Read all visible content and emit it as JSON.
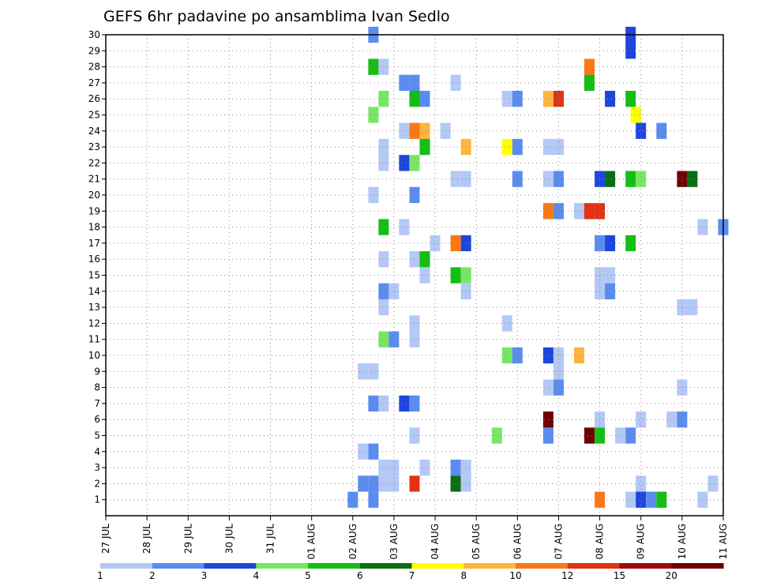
{
  "chart_data": {
    "type": "heatmap",
    "title": "GEFS 6hr padavine po ansamblima Ivan Sedlo",
    "y_ticks": [
      "1",
      "2",
      "3",
      "4",
      "5",
      "6",
      "7",
      "8",
      "9",
      "10",
      "11",
      "12",
      "13",
      "14",
      "15",
      "16",
      "17",
      "18",
      "19",
      "20",
      "21",
      "22",
      "23",
      "24",
      "25",
      "26",
      "27",
      "28",
      "29",
      "30"
    ],
    "x_ticks": [
      "27 JUL",
      "28 JUL",
      "29 JUL",
      "30 JUL",
      "31 JUL",
      "01 AUG",
      "02 AUG",
      "03 AUG",
      "04 AUG",
      "05 AUG",
      "06 AUG",
      "07 AUG",
      "08 AUG",
      "09 AUG",
      "10 AUG",
      "11 AUG"
    ],
    "x_range_days": [
      0,
      15
    ],
    "y_range": [
      0,
      30
    ],
    "grid": true,
    "colorbar": {
      "labels": [
        "1",
        "2",
        "3",
        "4",
        "5",
        "6",
        "7",
        "8",
        "10",
        "12",
        "15",
        "20"
      ],
      "colors": [
        "#b4c8f5",
        "#5a8cf0",
        "#1e46dc",
        "#78e664",
        "#14be14",
        "#0a6e14",
        "#ffff00",
        "#ffb43c",
        "#fa7814",
        "#e13214",
        "#a00a0a",
        "#6e0000"
      ]
    },
    "cells": [
      {
        "day": 6.5,
        "member": 30,
        "c": 1
      },
      {
        "day": 12.75,
        "member": 30,
        "c": 2
      },
      {
        "day": 12.75,
        "member": 29,
        "c": 2
      },
      {
        "day": 6.5,
        "member": 28,
        "c": 4
      },
      {
        "day": 6.75,
        "member": 28,
        "c": 0
      },
      {
        "day": 11.75,
        "member": 28,
        "c": 8
      },
      {
        "day": 7.25,
        "member": 27,
        "c": 1
      },
      {
        "day": 7.5,
        "member": 27,
        "c": 1
      },
      {
        "day": 8.5,
        "member": 27,
        "c": 0
      },
      {
        "day": 11.75,
        "member": 27,
        "c": 4
      },
      {
        "day": 6.75,
        "member": 26,
        "c": 3
      },
      {
        "day": 7.5,
        "member": 26,
        "c": 4
      },
      {
        "day": 7.75,
        "member": 26,
        "c": 1
      },
      {
        "day": 9.75,
        "member": 26,
        "c": 0
      },
      {
        "day": 10.0,
        "member": 26,
        "c": 1
      },
      {
        "day": 10.75,
        "member": 26,
        "c": 7
      },
      {
        "day": 11.0,
        "member": 26,
        "c": 9
      },
      {
        "day": 12.25,
        "member": 26,
        "c": 2
      },
      {
        "day": 12.75,
        "member": 26,
        "c": 4
      },
      {
        "day": 6.5,
        "member": 25,
        "c": 3
      },
      {
        "day": 12.875,
        "member": 25,
        "c": 6
      },
      {
        "day": 7.25,
        "member": 24,
        "c": 0
      },
      {
        "day": 7.5,
        "member": 24,
        "c": 8
      },
      {
        "day": 7.75,
        "member": 24,
        "c": 7
      },
      {
        "day": 8.25,
        "member": 24,
        "c": 0
      },
      {
        "day": 13.0,
        "member": 24,
        "c": 2
      },
      {
        "day": 13.5,
        "member": 24,
        "c": 1
      },
      {
        "day": 6.75,
        "member": 23,
        "c": 0
      },
      {
        "day": 7.75,
        "member": 23,
        "c": 4
      },
      {
        "day": 8.75,
        "member": 23,
        "c": 7
      },
      {
        "day": 9.75,
        "member": 23,
        "c": 6
      },
      {
        "day": 10.0,
        "member": 23,
        "c": 1
      },
      {
        "day": 10.75,
        "member": 23,
        "c": 0
      },
      {
        "day": 11.0,
        "member": 23,
        "c": 0
      },
      {
        "day": 6.75,
        "member": 22,
        "c": 0
      },
      {
        "day": 7.25,
        "member": 22,
        "c": 2
      },
      {
        "day": 7.5,
        "member": 22,
        "c": 3
      },
      {
        "day": 8.5,
        "member": 21,
        "c": 0
      },
      {
        "day": 8.75,
        "member": 21,
        "c": 0
      },
      {
        "day": 10.0,
        "member": 21,
        "c": 1
      },
      {
        "day": 10.75,
        "member": 21,
        "c": 0
      },
      {
        "day": 11.0,
        "member": 21,
        "c": 1
      },
      {
        "day": 12.0,
        "member": 21,
        "c": 2
      },
      {
        "day": 12.25,
        "member": 21,
        "c": 5
      },
      {
        "day": 12.75,
        "member": 21,
        "c": 4
      },
      {
        "day": 13.0,
        "member": 21,
        "c": 3
      },
      {
        "day": 14.0,
        "member": 21,
        "c": 11
      },
      {
        "day": 14.25,
        "member": 21,
        "c": 5
      },
      {
        "day": 6.5,
        "member": 20,
        "c": 0
      },
      {
        "day": 7.5,
        "member": 20,
        "c": 1
      },
      {
        "day": 10.75,
        "member": 19,
        "c": 8
      },
      {
        "day": 11.0,
        "member": 19,
        "c": 1
      },
      {
        "day": 11.5,
        "member": 19,
        "c": 0
      },
      {
        "day": 11.75,
        "member": 19,
        "c": 9
      },
      {
        "day": 12.0,
        "member": 19,
        "c": 9
      },
      {
        "day": 6.75,
        "member": 18,
        "c": 4
      },
      {
        "day": 7.25,
        "member": 18,
        "c": 0
      },
      {
        "day": 14.5,
        "member": 18,
        "c": 0
      },
      {
        "day": 15.0,
        "member": 18,
        "c": 1
      },
      {
        "day": 8.0,
        "member": 17,
        "c": 0
      },
      {
        "day": 8.5,
        "member": 17,
        "c": 8
      },
      {
        "day": 8.75,
        "member": 17,
        "c": 2
      },
      {
        "day": 12.0,
        "member": 17,
        "c": 1
      },
      {
        "day": 12.25,
        "member": 17,
        "c": 2
      },
      {
        "day": 12.75,
        "member": 17,
        "c": 4
      },
      {
        "day": 6.75,
        "member": 16,
        "c": 0
      },
      {
        "day": 7.5,
        "member": 16,
        "c": 0
      },
      {
        "day": 7.75,
        "member": 16,
        "c": 4
      },
      {
        "day": 7.75,
        "member": 15,
        "c": 0
      },
      {
        "day": 8.5,
        "member": 15,
        "c": 4
      },
      {
        "day": 8.75,
        "member": 15,
        "c": 3
      },
      {
        "day": 12.0,
        "member": 15,
        "c": 0
      },
      {
        "day": 12.25,
        "member": 15,
        "c": 0
      },
      {
        "day": 6.75,
        "member": 14,
        "c": 1
      },
      {
        "day": 7.0,
        "member": 14,
        "c": 0
      },
      {
        "day": 8.75,
        "member": 14,
        "c": 0
      },
      {
        "day": 12.0,
        "member": 14,
        "c": 0
      },
      {
        "day": 12.25,
        "member": 14,
        "c": 1
      },
      {
        "day": 6.75,
        "member": 13,
        "c": 0
      },
      {
        "day": 14.0,
        "member": 13,
        "c": 0
      },
      {
        "day": 14.25,
        "member": 13,
        "c": 0
      },
      {
        "day": 7.5,
        "member": 12,
        "c": 0
      },
      {
        "day": 9.75,
        "member": 12,
        "c": 0
      },
      {
        "day": 6.75,
        "member": 11,
        "c": 3
      },
      {
        "day": 7.0,
        "member": 11,
        "c": 1
      },
      {
        "day": 7.5,
        "member": 11,
        "c": 0
      },
      {
        "day": 9.75,
        "member": 10,
        "c": 3
      },
      {
        "day": 10.0,
        "member": 10,
        "c": 1
      },
      {
        "day": 10.75,
        "member": 10,
        "c": 2
      },
      {
        "day": 11.0,
        "member": 10,
        "c": 0
      },
      {
        "day": 11.5,
        "member": 10,
        "c": 7
      },
      {
        "day": 6.25,
        "member": 9,
        "c": 0
      },
      {
        "day": 6.5,
        "member": 9,
        "c": 0
      },
      {
        "day": 11.0,
        "member": 9,
        "c": 0
      },
      {
        "day": 10.75,
        "member": 8,
        "c": 0
      },
      {
        "day": 11.0,
        "member": 8,
        "c": 1
      },
      {
        "day": 14.0,
        "member": 8,
        "c": 0
      },
      {
        "day": 6.5,
        "member": 7,
        "c": 1
      },
      {
        "day": 6.75,
        "member": 7,
        "c": 0
      },
      {
        "day": 7.25,
        "member": 7,
        "c": 2
      },
      {
        "day": 7.5,
        "member": 7,
        "c": 1
      },
      {
        "day": 10.75,
        "member": 6,
        "c": 11
      },
      {
        "day": 12.0,
        "member": 6,
        "c": 0
      },
      {
        "day": 13.0,
        "member": 6,
        "c": 0
      },
      {
        "day": 13.75,
        "member": 6,
        "c": 0
      },
      {
        "day": 14.0,
        "member": 6,
        "c": 1
      },
      {
        "day": 7.5,
        "member": 5,
        "c": 0
      },
      {
        "day": 9.5,
        "member": 5,
        "c": 3
      },
      {
        "day": 10.75,
        "member": 5,
        "c": 1
      },
      {
        "day": 11.75,
        "member": 5,
        "c": 11
      },
      {
        "day": 12.0,
        "member": 5,
        "c": 4
      },
      {
        "day": 12.5,
        "member": 5,
        "c": 0
      },
      {
        "day": 12.75,
        "member": 5,
        "c": 1
      },
      {
        "day": 6.25,
        "member": 4,
        "c": 0
      },
      {
        "day": 6.5,
        "member": 4,
        "c": 1
      },
      {
        "day": 6.75,
        "member": 3,
        "c": 0
      },
      {
        "day": 7.0,
        "member": 3,
        "c": 0
      },
      {
        "day": 7.75,
        "member": 3,
        "c": 0
      },
      {
        "day": 8.5,
        "member": 3,
        "c": 1
      },
      {
        "day": 8.75,
        "member": 3,
        "c": 0
      },
      {
        "day": 6.25,
        "member": 2,
        "c": 1
      },
      {
        "day": 6.5,
        "member": 2,
        "c": 1
      },
      {
        "day": 6.75,
        "member": 2,
        "c": 0
      },
      {
        "day": 7.0,
        "member": 2,
        "c": 0
      },
      {
        "day": 7.5,
        "member": 2,
        "c": 9
      },
      {
        "day": 8.5,
        "member": 2,
        "c": 5
      },
      {
        "day": 8.75,
        "member": 2,
        "c": 0
      },
      {
        "day": 13.0,
        "member": 2,
        "c": 0
      },
      {
        "day": 14.75,
        "member": 2,
        "c": 0
      },
      {
        "day": 6.0,
        "member": 1,
        "c": 1
      },
      {
        "day": 6.5,
        "member": 1,
        "c": 1
      },
      {
        "day": 12.0,
        "member": 1,
        "c": 8
      },
      {
        "day": 12.75,
        "member": 1,
        "c": 0
      },
      {
        "day": 13.0,
        "member": 1,
        "c": 2
      },
      {
        "day": 13.25,
        "member": 1,
        "c": 1
      },
      {
        "day": 13.5,
        "member": 1,
        "c": 4
      },
      {
        "day": 14.5,
        "member": 1,
        "c": 0
      }
    ]
  }
}
